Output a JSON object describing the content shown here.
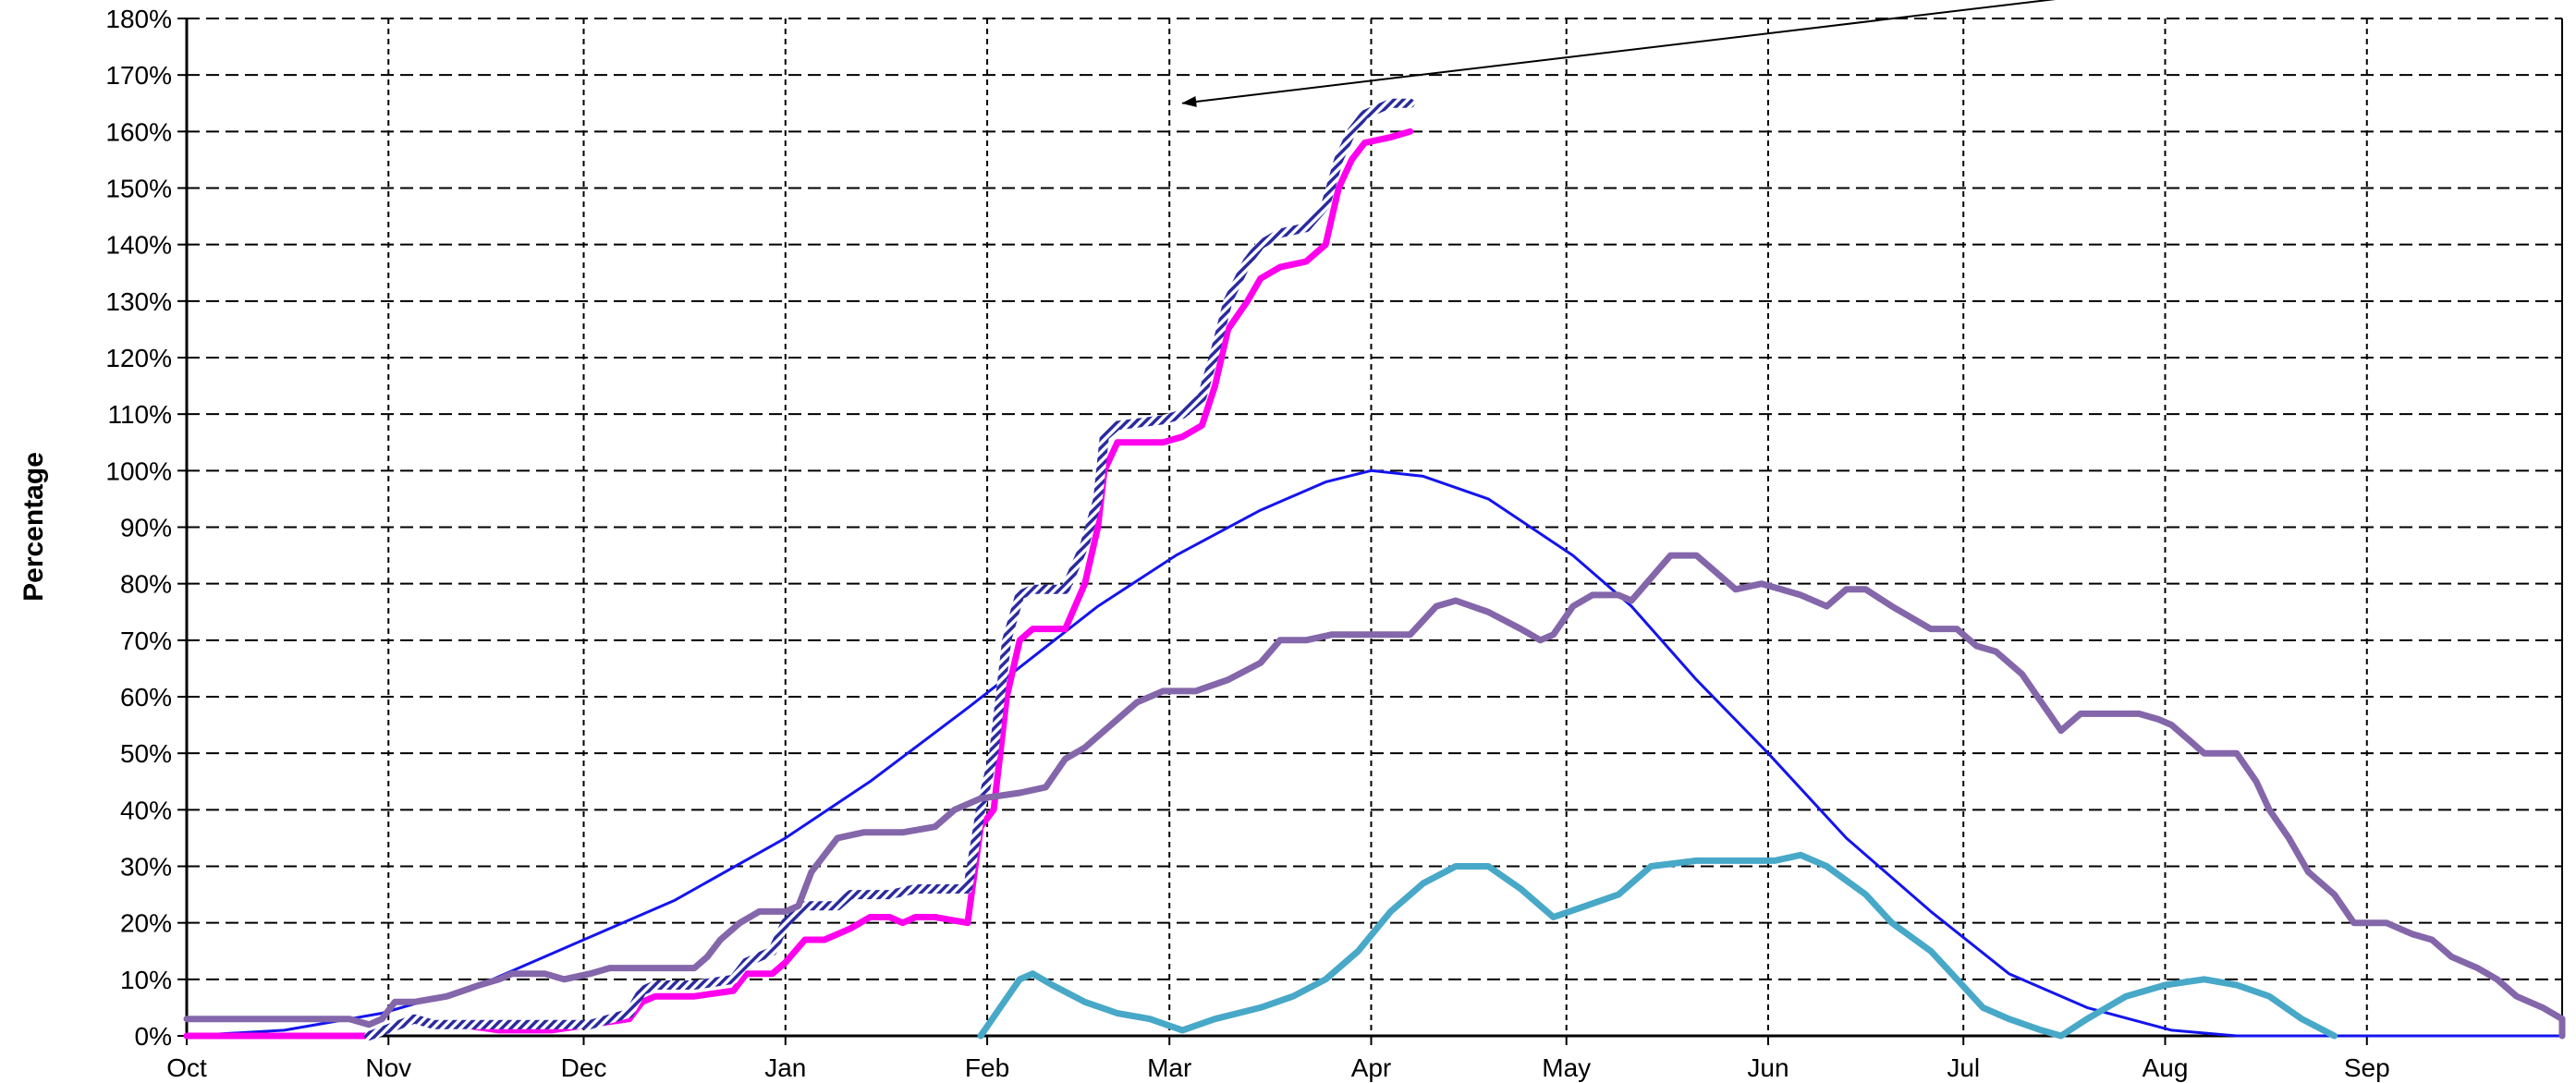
{
  "chart_data": {
    "type": "line",
    "title": "",
    "xlabel": "",
    "ylabel": "Percentage",
    "x_tick_labels": [
      "Oct",
      "Nov",
      "Dec",
      "Jan",
      "Feb",
      "Mar",
      "Apr",
      "May",
      "Jun",
      "Jul",
      "Aug",
      "Sep"
    ],
    "y_tick_labels": [
      "0%",
      "10%",
      "20%",
      "30%",
      "40%",
      "50%",
      "60%",
      "70%",
      "80%",
      "90%",
      "100%",
      "110%",
      "120%",
      "130%",
      "140%",
      "150%",
      "160%",
      "170%",
      "180%"
    ],
    "xlim": [
      0,
      365
    ],
    "ylim": [
      0,
      180
    ],
    "grid": true,
    "legend": "none",
    "annotation": {
      "type": "arrow",
      "from": [
        335,
        190
      ],
      "to": [
        153,
        165
      ]
    },
    "series": [
      {
        "color": "#1414ee",
        "style": "thin",
        "points": [
          [
            0,
            0
          ],
          [
            15,
            1
          ],
          [
            30,
            4
          ],
          [
            45,
            9
          ],
          [
            61,
            17
          ],
          [
            75,
            24
          ],
          [
            92,
            35
          ],
          [
            105,
            45
          ],
          [
            120,
            58
          ],
          [
            130,
            67
          ],
          [
            140,
            76
          ],
          [
            152,
            85
          ],
          [
            165,
            93
          ],
          [
            175,
            98
          ],
          [
            182,
            100
          ],
          [
            190,
            99
          ],
          [
            200,
            95
          ],
          [
            213,
            85
          ],
          [
            222,
            76
          ],
          [
            232,
            63
          ],
          [
            243,
            50
          ],
          [
            255,
            35
          ],
          [
            268,
            22
          ],
          [
            280,
            11
          ],
          [
            292,
            5
          ],
          [
            305,
            1
          ],
          [
            315,
            0
          ],
          [
            365,
            0
          ]
        ]
      },
      {
        "color": "#ff00ee",
        "style": "thick",
        "points": [
          [
            0,
            0
          ],
          [
            28,
            0
          ],
          [
            35,
            3
          ],
          [
            38,
            2
          ],
          [
            42,
            2
          ],
          [
            48,
            1
          ],
          [
            52,
            1
          ],
          [
            56,
            1
          ],
          [
            62,
            2
          ],
          [
            68,
            3
          ],
          [
            70,
            6
          ],
          [
            72,
            7
          ],
          [
            78,
            7
          ],
          [
            84,
            8
          ],
          [
            86,
            11
          ],
          [
            90,
            11
          ],
          [
            92,
            13
          ],
          [
            95,
            17
          ],
          [
            98,
            17
          ],
          [
            102,
            19
          ],
          [
            105,
            21
          ],
          [
            108,
            21
          ],
          [
            110,
            20
          ],
          [
            112,
            21
          ],
          [
            115,
            21
          ],
          [
            120,
            20
          ],
          [
            122,
            37
          ],
          [
            124,
            40
          ],
          [
            126,
            60
          ],
          [
            128,
            70
          ],
          [
            130,
            72
          ],
          [
            135,
            72
          ],
          [
            138,
            80
          ],
          [
            140,
            90
          ],
          [
            141,
            100
          ],
          [
            143,
            105
          ],
          [
            150,
            105
          ],
          [
            153,
            106
          ],
          [
            156,
            108
          ],
          [
            158,
            115
          ],
          [
            160,
            125
          ],
          [
            163,
            130
          ],
          [
            165,
            134
          ],
          [
            168,
            136
          ],
          [
            172,
            137
          ],
          [
            175,
            140
          ],
          [
            177,
            150
          ],
          [
            179,
            155
          ],
          [
            181,
            158
          ],
          [
            185,
            159
          ],
          [
            188,
            160
          ]
        ]
      },
      {
        "color": "#8888cc",
        "style": "hatched",
        "points": [
          [
            28,
            0
          ],
          [
            35,
            3
          ],
          [
            38,
            2
          ],
          [
            48,
            2
          ],
          [
            56,
            2
          ],
          [
            62,
            2
          ],
          [
            68,
            4
          ],
          [
            70,
            8
          ],
          [
            72,
            9
          ],
          [
            78,
            9
          ],
          [
            84,
            10
          ],
          [
            86,
            13
          ],
          [
            90,
            15
          ],
          [
            92,
            20
          ],
          [
            95,
            23
          ],
          [
            100,
            23
          ],
          [
            102,
            25
          ],
          [
            108,
            25
          ],
          [
            112,
            26
          ],
          [
            120,
            26
          ],
          [
            122,
            40
          ],
          [
            124,
            50
          ],
          [
            126,
            70
          ],
          [
            128,
            78
          ],
          [
            130,
            79
          ],
          [
            135,
            79
          ],
          [
            138,
            87
          ],
          [
            140,
            95
          ],
          [
            141,
            106
          ],
          [
            143,
            108
          ],
          [
            150,
            109
          ],
          [
            153,
            110
          ],
          [
            156,
            113
          ],
          [
            158,
            121
          ],
          [
            160,
            130
          ],
          [
            163,
            137
          ],
          [
            165,
            140
          ],
          [
            168,
            142
          ],
          [
            172,
            143
          ],
          [
            175,
            147
          ],
          [
            177,
            155
          ],
          [
            179,
            160
          ],
          [
            181,
            163
          ],
          [
            185,
            165
          ],
          [
            188,
            165
          ]
        ]
      },
      {
        "color": "#8466aa",
        "style": "thick",
        "points": [
          [
            0,
            3
          ],
          [
            10,
            3
          ],
          [
            20,
            3
          ],
          [
            25,
            3
          ],
          [
            28,
            2
          ],
          [
            30,
            3
          ],
          [
            32,
            6
          ],
          [
            35,
            6
          ],
          [
            40,
            7
          ],
          [
            45,
            9
          ],
          [
            48,
            10
          ],
          [
            50,
            11
          ],
          [
            55,
            11
          ],
          [
            58,
            10
          ],
          [
            62,
            11
          ],
          [
            65,
            12
          ],
          [
            70,
            12
          ],
          [
            75,
            12
          ],
          [
            78,
            12
          ],
          [
            80,
            14
          ],
          [
            82,
            17
          ],
          [
            85,
            20
          ],
          [
            88,
            22
          ],
          [
            92,
            22
          ],
          [
            94,
            23
          ],
          [
            96,
            29
          ],
          [
            98,
            32
          ],
          [
            100,
            35
          ],
          [
            104,
            36
          ],
          [
            110,
            36
          ],
          [
            115,
            37
          ],
          [
            118,
            40
          ],
          [
            122,
            42
          ],
          [
            128,
            43
          ],
          [
            132,
            44
          ],
          [
            135,
            49
          ],
          [
            138,
            51
          ],
          [
            142,
            55
          ],
          [
            146,
            59
          ],
          [
            150,
            61
          ],
          [
            155,
            61
          ],
          [
            160,
            63
          ],
          [
            165,
            66
          ],
          [
            168,
            70
          ],
          [
            172,
            70
          ],
          [
            176,
            71
          ],
          [
            180,
            71
          ],
          [
            185,
            71
          ],
          [
            188,
            71
          ],
          [
            192,
            76
          ],
          [
            195,
            77
          ],
          [
            200,
            75
          ],
          [
            205,
            72
          ],
          [
            208,
            70
          ],
          [
            210,
            71
          ],
          [
            213,
            76
          ],
          [
            216,
            78
          ],
          [
            220,
            78
          ],
          [
            222,
            77
          ],
          [
            225,
            81
          ],
          [
            228,
            85
          ],
          [
            232,
            85
          ],
          [
            235,
            82
          ],
          [
            238,
            79
          ],
          [
            242,
            80
          ],
          [
            245,
            79
          ],
          [
            248,
            78
          ],
          [
            252,
            76
          ],
          [
            255,
            79
          ],
          [
            258,
            79
          ],
          [
            262,
            76
          ],
          [
            265,
            74
          ],
          [
            268,
            72
          ],
          [
            272,
            72
          ],
          [
            275,
            69
          ],
          [
            278,
            68
          ],
          [
            282,
            64
          ],
          [
            285,
            59
          ],
          [
            288,
            54
          ],
          [
            291,
            57
          ],
          [
            295,
            57
          ],
          [
            300,
            57
          ],
          [
            303,
            56
          ],
          [
            305,
            55
          ],
          [
            308,
            52
          ],
          [
            310,
            50
          ],
          [
            315,
            50
          ],
          [
            318,
            45
          ],
          [
            320,
            40
          ],
          [
            323,
            35
          ],
          [
            326,
            29
          ],
          [
            330,
            25
          ],
          [
            333,
            20
          ],
          [
            338,
            20
          ],
          [
            342,
            18
          ],
          [
            345,
            17
          ],
          [
            348,
            14
          ],
          [
            352,
            12
          ],
          [
            355,
            10
          ],
          [
            358,
            7
          ],
          [
            362,
            5
          ],
          [
            365,
            3
          ],
          [
            368,
            0
          ],
          [
            480,
            0
          ]
        ]
      },
      {
        "color": "#48a8c8",
        "style": "thick",
        "points": [
          [
            122,
            0
          ],
          [
            125,
            5
          ],
          [
            128,
            10
          ],
          [
            130,
            11
          ],
          [
            133,
            9
          ],
          [
            138,
            6
          ],
          [
            143,
            4
          ],
          [
            148,
            3
          ],
          [
            153,
            1
          ],
          [
            158,
            3
          ],
          [
            165,
            5
          ],
          [
            170,
            7
          ],
          [
            175,
            10
          ],
          [
            180,
            15
          ],
          [
            185,
            22
          ],
          [
            190,
            27
          ],
          [
            195,
            30
          ],
          [
            200,
            30
          ],
          [
            205,
            26
          ],
          [
            210,
            21
          ],
          [
            215,
            23
          ],
          [
            220,
            25
          ],
          [
            225,
            30
          ],
          [
            232,
            31
          ],
          [
            238,
            31
          ],
          [
            244,
            31
          ],
          [
            248,
            32
          ],
          [
            252,
            30
          ],
          [
            258,
            25
          ],
          [
            262,
            20
          ],
          [
            268,
            15
          ],
          [
            272,
            10
          ],
          [
            276,
            5
          ],
          [
            280,
            3
          ],
          [
            285,
            1
          ],
          [
            288,
            0
          ],
          [
            292,
            3
          ],
          [
            298,
            7
          ],
          [
            304,
            9
          ],
          [
            310,
            10
          ],
          [
            315,
            9
          ],
          [
            320,
            7
          ],
          [
            325,
            3
          ],
          [
            330,
            0
          ]
        ]
      }
    ]
  }
}
